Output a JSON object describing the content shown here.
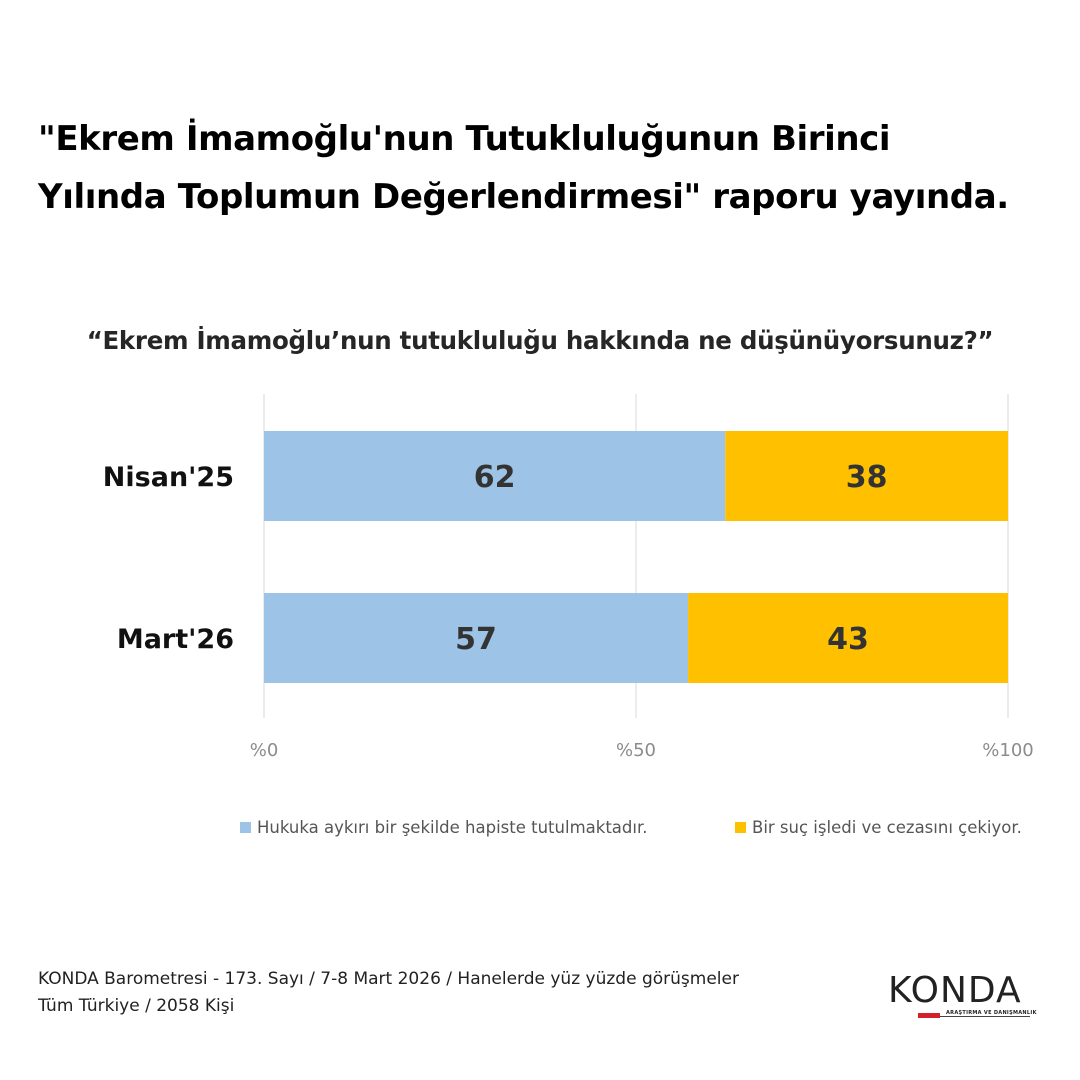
{
  "headline": {
    "line1": "\"Ekrem İmamoğlu'nun Tutukluluğunun Birinci",
    "line2": "Yılında Toplumun Değerlendirmesi\" raporu yayında."
  },
  "question": "“Ekrem İmamoğlu’nun tutukluluğu hakkında ne düşünüyorsunuz?”",
  "chart_data": {
    "type": "bar",
    "orientation": "horizontal",
    "stacked": true,
    "categories": [
      "Nisan'25",
      "Mart'26"
    ],
    "series": [
      {
        "name": "Hukuka aykırı bir şekilde hapiste tutulmaktadır.",
        "values": [
          62,
          57
        ],
        "color": "#9dc3e6"
      },
      {
        "name": "Bir suç işledi ve cezasını çekiyor.",
        "values": [
          38,
          43
        ],
        "color": "#ffc000"
      }
    ],
    "xlim": [
      0,
      100
    ],
    "x_ticks": [
      0,
      50,
      100
    ],
    "x_tick_labels": [
      "%0",
      "%50",
      "%100"
    ],
    "grid": true,
    "legend_position": "bottom"
  },
  "source": {
    "line1": "KONDA Barometresi - 173. Sayı / 7-8 Mart 2026 / Hanelerde yüz yüzde görüşmeler",
    "line2": "Tüm Türkiye / 2058 Kişi"
  },
  "logo": {
    "name": "KONDA",
    "tagline": "ARAŞTIRMA VE DANIŞMANLIK"
  }
}
